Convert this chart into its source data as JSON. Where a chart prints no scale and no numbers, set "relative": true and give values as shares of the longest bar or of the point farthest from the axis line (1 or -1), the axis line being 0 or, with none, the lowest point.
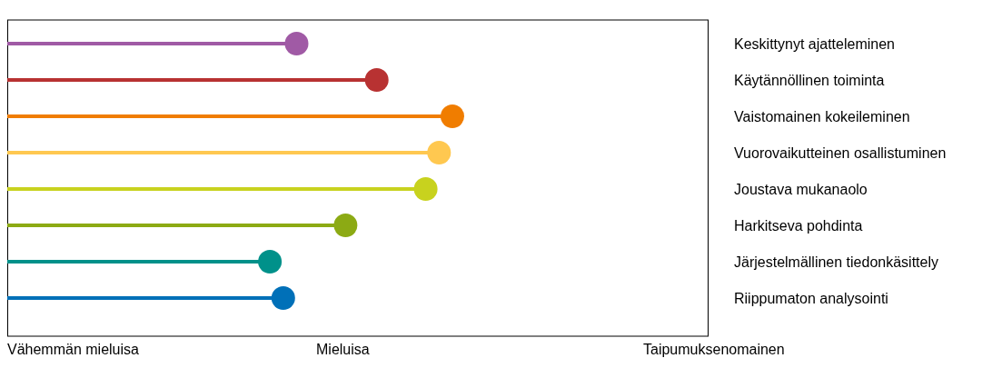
{
  "chart_data": {
    "type": "lollipop",
    "orientation": "horizontal",
    "relative": true,
    "categories": [
      "Keskittynyt ajatteleminen",
      "Käytännöllinen toiminta",
      "Vaistomainen kokeileminen",
      "Vuorovaikutteinen osallistuminen",
      "Joustava mukanaolo",
      "Harkitseva pohdinta",
      "Järjestelmällinen tiedonkäsittely",
      "Riippumaton analysointi"
    ],
    "values": [
      0.65,
      0.83,
      1,
      0.97,
      0.94,
      0.76,
      0.59,
      0.62
    ],
    "colors": [
      "#a05aa5",
      "#b83232",
      "#f07d00",
      "#ffc850",
      "#c8d21e",
      "#8caa14",
      "#00918a",
      "#0070b8"
    ],
    "annotations": [
      "Vähemmän mieluisa",
      "Mieluisa",
      "Taipumuksenomainen"
    ]
  }
}
